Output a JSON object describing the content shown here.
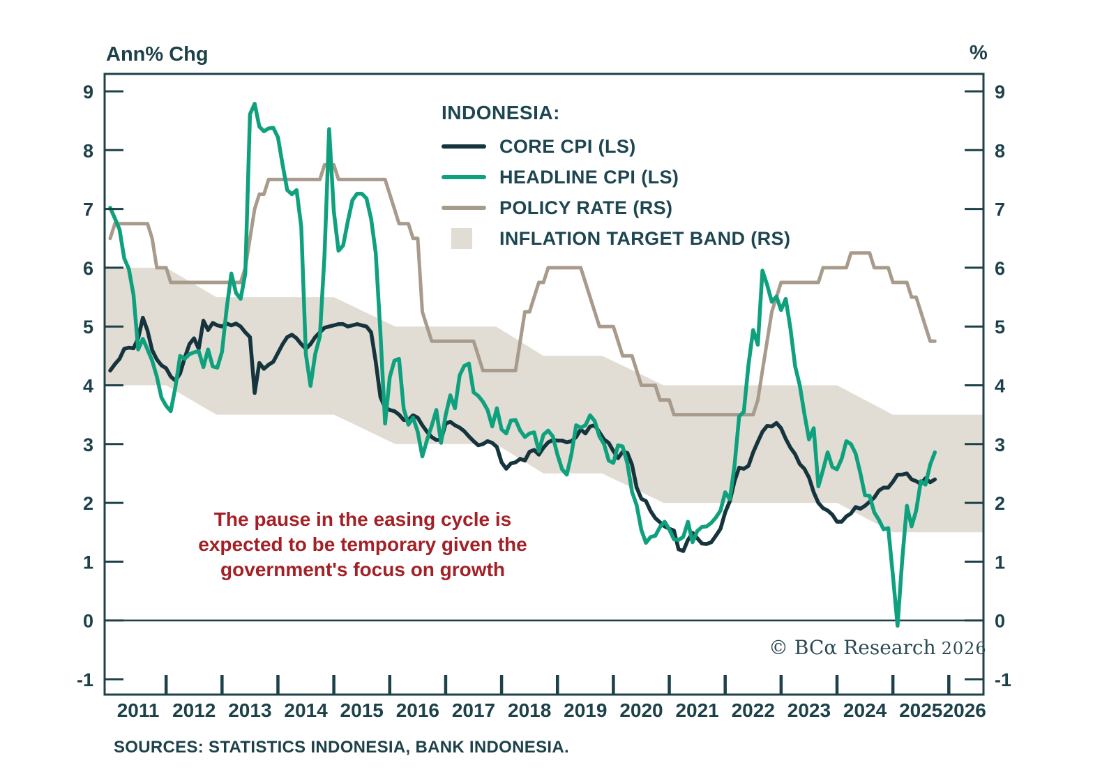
{
  "header": {
    "left_axis_title": "Ann% Chg",
    "right_axis_title": "%"
  },
  "legend": {
    "title": "INDONESIA:",
    "items": [
      {
        "label": "CORE CPI (LS)",
        "swatch": "line",
        "color": "#16343d"
      },
      {
        "label": "HEADLINE CPI (LS)",
        "swatch": "line",
        "color": "#0fa17e"
      },
      {
        "label": "POLICY RATE (RS)",
        "swatch": "line",
        "color": "#a89b8c"
      },
      {
        "label": "INFLATION TARGET BAND (RS)",
        "swatch": "box",
        "color": "#e2ddd4"
      }
    ]
  },
  "annotation": {
    "color": "#a32126",
    "lines": [
      "The pause in the easing cycle is",
      "expected to be temporary given the",
      "government's focus on growth"
    ]
  },
  "watermark": {
    "text": "© BCα Research",
    "year": "2026"
  },
  "footer": {
    "sources": "SOURCES: STATISTICS INDONESIA, BANK INDONESIA."
  },
  "chart_data": {
    "type": "line",
    "title": "Indonesia CPI and policy rate",
    "x_range": [
      2010.9,
      2026.62
    ],
    "ylim": [
      -1,
      9
    ],
    "y_ticks": [
      9,
      8,
      7,
      6,
      5,
      4,
      3,
      2,
      1,
      0,
      -1
    ],
    "x_tick_years": [
      2012,
      2013,
      2014,
      2015,
      2016,
      2017,
      2018,
      2019,
      2020,
      2021,
      2022,
      2023,
      2024,
      2025,
      2026
    ],
    "x_labels": [
      "2011",
      "2012",
      "2013",
      "2014",
      "2015",
      "2016",
      "2017",
      "2018",
      "2019",
      "2020",
      "2021",
      "2022",
      "2023",
      "2024",
      "2025",
      "2026"
    ],
    "grid": false,
    "zero_line": 0,
    "legend_position": "top-center-inside",
    "series": [
      {
        "name": "CORE CPI (LS)",
        "color": "#16343d",
        "axis": "left",
        "start_year": 2011,
        "freq": "monthly",
        "values": [
          4.25,
          4.36,
          4.45,
          4.62,
          4.64,
          4.63,
          4.8,
          5.15,
          4.93,
          4.6,
          4.44,
          4.34,
          4.29,
          4.15,
          4.08,
          4.2,
          4.47,
          4.7,
          4.8,
          4.62,
          5.1,
          4.94,
          5.06,
          5.02,
          5.0,
          5.05,
          5.02,
          5.05,
          5.0,
          4.9,
          4.82,
          3.87,
          4.38,
          4.28,
          4.35,
          4.4,
          4.55,
          4.7,
          4.82,
          4.86,
          4.8,
          4.7,
          4.62,
          4.7,
          4.82,
          4.9,
          4.98,
          5.0,
          5.02,
          5.04,
          5.04,
          5.0,
          5.02,
          5.04,
          5.02,
          5.0,
          4.9,
          4.4,
          3.8,
          3.62,
          3.58,
          3.56,
          3.5,
          3.41,
          3.41,
          3.49,
          3.45,
          3.32,
          3.21,
          3.12,
          3.07,
          3.07,
          3.35,
          3.38,
          3.32,
          3.28,
          3.22,
          3.13,
          3.05,
          2.98,
          3.0,
          3.05,
          3.02,
          2.95,
          2.69,
          2.58,
          2.67,
          2.69,
          2.75,
          2.72,
          2.87,
          2.9,
          2.82,
          2.94,
          3.03,
          3.07,
          3.06,
          3.06,
          3.03,
          3.05,
          3.12,
          3.25,
          3.18,
          3.3,
          3.32,
          3.2,
          3.08,
          3.02,
          2.88,
          2.76,
          2.87,
          2.85,
          2.65,
          2.26,
          2.07,
          2.03,
          1.86,
          1.74,
          1.67,
          1.6,
          1.56,
          1.53,
          1.21,
          1.18,
          1.37,
          1.49,
          1.4,
          1.31,
          1.3,
          1.33,
          1.44,
          1.56,
          1.84,
          2.03,
          2.37,
          2.6,
          2.58,
          2.63,
          2.86,
          3.04,
          3.21,
          3.31,
          3.3,
          3.36,
          3.27,
          3.09,
          2.94,
          2.83,
          2.66,
          2.58,
          2.43,
          2.18,
          2.0,
          1.91,
          1.87,
          1.8,
          1.68,
          1.68,
          1.77,
          1.82,
          1.93,
          1.9,
          1.95,
          2.02,
          2.09,
          2.21,
          2.26,
          2.26,
          2.36,
          2.48,
          2.48,
          2.5,
          2.4,
          2.37,
          2.32,
          2.42,
          2.35,
          2.4
        ]
      },
      {
        "name": "HEADLINE CPI (LS)",
        "color": "#0fa17e",
        "axis": "left",
        "start_year": 2011,
        "freq": "monthly",
        "values": [
          7.02,
          6.84,
          6.65,
          6.16,
          5.98,
          5.54,
          4.61,
          4.79,
          4.61,
          4.42,
          4.15,
          3.79,
          3.65,
          3.56,
          3.97,
          4.5,
          4.45,
          4.53,
          4.56,
          4.58,
          4.31,
          4.61,
          4.32,
          4.3,
          4.57,
          5.31,
          5.9,
          5.57,
          5.47,
          5.9,
          8.61,
          8.79,
          8.4,
          8.32,
          8.37,
          8.38,
          8.22,
          7.75,
          7.32,
          7.25,
          7.32,
          6.7,
          4.53,
          3.99,
          4.53,
          4.83,
          6.23,
          8.36,
          6.96,
          6.29,
          6.38,
          6.79,
          7.15,
          7.26,
          7.26,
          7.18,
          6.83,
          6.25,
          4.89,
          3.35,
          4.14,
          4.42,
          4.45,
          3.6,
          3.33,
          3.45,
          3.21,
          2.79,
          3.07,
          3.31,
          3.58,
          3.02,
          3.49,
          3.83,
          3.61,
          4.17,
          4.33,
          4.37,
          3.88,
          3.82,
          3.72,
          3.58,
          3.3,
          3.61,
          3.25,
          3.18,
          3.4,
          3.41,
          3.23,
          3.12,
          3.18,
          3.2,
          2.88,
          3.16,
          3.23,
          3.13,
          2.82,
          2.57,
          2.48,
          2.83,
          3.32,
          3.28,
          3.32,
          3.49,
          3.39,
          3.13,
          3.0,
          2.72,
          2.68,
          2.98,
          2.96,
          2.67,
          2.19,
          1.96,
          1.54,
          1.32,
          1.42,
          1.44,
          1.59,
          1.68,
          1.55,
          1.38,
          1.37,
          1.42,
          1.68,
          1.33,
          1.52,
          1.59,
          1.6,
          1.66,
          1.75,
          1.87,
          2.18,
          2.06,
          2.64,
          3.47,
          3.55,
          4.35,
          4.94,
          4.69,
          5.95,
          5.71,
          5.42,
          5.51,
          5.28,
          5.47,
          4.97,
          4.33,
          4.0,
          3.52,
          3.08,
          3.27,
          2.28,
          2.56,
          2.86,
          2.61,
          2.57,
          2.75,
          3.05,
          3.0,
          2.84,
          2.51,
          2.13,
          2.12,
          1.84,
          1.71,
          1.55,
          1.57,
          0.76,
          -0.09,
          1.03,
          1.95,
          1.6,
          1.87,
          2.37,
          2.31,
          2.65,
          2.86
        ]
      },
      {
        "name": "POLICY RATE (RS)",
        "color": "#a89b8c",
        "axis": "right",
        "start_year": 2011,
        "freq": "monthly",
        "values": [
          6.5,
          6.75,
          6.75,
          6.75,
          6.75,
          6.75,
          6.75,
          6.75,
          6.75,
          6.5,
          6.0,
          6.0,
          6.0,
          5.75,
          5.75,
          5.75,
          5.75,
          5.75,
          5.75,
          5.75,
          5.75,
          5.75,
          5.75,
          5.75,
          5.75,
          5.75,
          5.75,
          5.75,
          5.75,
          6.0,
          6.5,
          7.0,
          7.25,
          7.25,
          7.5,
          7.5,
          7.5,
          7.5,
          7.5,
          7.5,
          7.5,
          7.5,
          7.5,
          7.5,
          7.5,
          7.5,
          7.75,
          7.75,
          7.75,
          7.5,
          7.5,
          7.5,
          7.5,
          7.5,
          7.5,
          7.5,
          7.5,
          7.5,
          7.5,
          7.5,
          7.25,
          7.0,
          6.75,
          6.75,
          6.75,
          6.5,
          6.5,
          5.25,
          5.0,
          4.75,
          4.75,
          4.75,
          4.75,
          4.75,
          4.75,
          4.75,
          4.75,
          4.75,
          4.75,
          4.5,
          4.25,
          4.25,
          4.25,
          4.25,
          4.25,
          4.25,
          4.25,
          4.25,
          4.75,
          5.25,
          5.25,
          5.5,
          5.75,
          5.75,
          6.0,
          6.0,
          6.0,
          6.0,
          6.0,
          6.0,
          6.0,
          6.0,
          5.75,
          5.5,
          5.25,
          5.0,
          5.0,
          5.0,
          5.0,
          4.75,
          4.5,
          4.5,
          4.5,
          4.25,
          4.0,
          4.0,
          4.0,
          4.0,
          3.75,
          3.75,
          3.75,
          3.5,
          3.5,
          3.5,
          3.5,
          3.5,
          3.5,
          3.5,
          3.5,
          3.5,
          3.5,
          3.5,
          3.5,
          3.5,
          3.5,
          3.5,
          3.5,
          3.5,
          3.5,
          3.75,
          4.25,
          4.75,
          5.25,
          5.5,
          5.75,
          5.75,
          5.75,
          5.75,
          5.75,
          5.75,
          5.75,
          5.75,
          5.75,
          6.0,
          6.0,
          6.0,
          6.0,
          6.0,
          6.0,
          6.25,
          6.25,
          6.25,
          6.25,
          6.25,
          6.0,
          6.0,
          6.0,
          6.0,
          5.75,
          5.75,
          5.75,
          5.75,
          5.5,
          5.5,
          5.25,
          5.0,
          4.75,
          4.75
        ]
      }
    ],
    "band": {
      "name": "INFLATION TARGET BAND (RS)",
      "color": "#e2ddd4",
      "points": [
        {
          "x": 2010.9,
          "top": 6.0,
          "bottom": 4.0
        },
        {
          "x": 2012.0,
          "top": 6.0,
          "bottom": 4.0
        },
        {
          "x": 2012.9,
          "top": 5.5,
          "bottom": 3.5
        },
        {
          "x": 2015.0,
          "top": 5.5,
          "bottom": 3.5
        },
        {
          "x": 2016.1,
          "top": 5.0,
          "bottom": 3.0
        },
        {
          "x": 2017.9,
          "top": 5.0,
          "bottom": 3.0
        },
        {
          "x": 2018.75,
          "top": 4.5,
          "bottom": 2.5
        },
        {
          "x": 2019.8,
          "top": 4.5,
          "bottom": 2.5
        },
        {
          "x": 2020.9,
          "top": 4.0,
          "bottom": 2.0
        },
        {
          "x": 2024.0,
          "top": 4.0,
          "bottom": 2.0
        },
        {
          "x": 2025.0,
          "top": 3.5,
          "bottom": 1.5
        },
        {
          "x": 2026.62,
          "top": 3.5,
          "bottom": 1.5
        }
      ]
    }
  }
}
